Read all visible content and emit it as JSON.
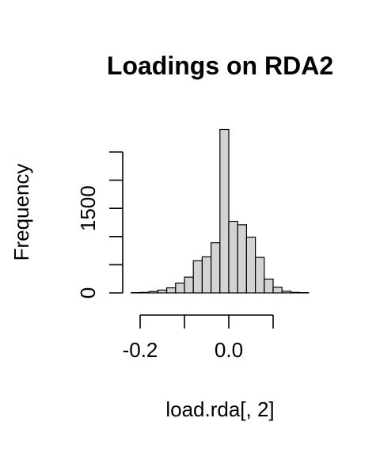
{
  "chart_data": {
    "type": "bar",
    "title": "Loadings on RDA2",
    "xlabel": "load.rda[, 2]",
    "ylabel": "Frequency",
    "x_ticks": [
      "-0.2",
      "0.0"
    ],
    "x_tick_values": [
      -0.2,
      -0.1,
      0.0,
      0.1
    ],
    "y_ticks": [
      "0",
      "1500"
    ],
    "y_tick_values": [
      0,
      500,
      1000,
      1500,
      2000,
      2500
    ],
    "bin_width": 0.02,
    "bins": [
      {
        "x0": -0.22,
        "x1": -0.2,
        "count": 5
      },
      {
        "x0": -0.2,
        "x1": -0.18,
        "count": 10
      },
      {
        "x0": -0.18,
        "x1": -0.16,
        "count": 25
      },
      {
        "x0": -0.16,
        "x1": -0.14,
        "count": 50
      },
      {
        "x0": -0.14,
        "x1": -0.12,
        "count": 90
      },
      {
        "x0": -0.12,
        "x1": -0.1,
        "count": 175
      },
      {
        "x0": -0.1,
        "x1": -0.08,
        "count": 280
      },
      {
        "x0": -0.08,
        "x1": -0.06,
        "count": 570
      },
      {
        "x0": -0.06,
        "x1": -0.04,
        "count": 640
      },
      {
        "x0": -0.04,
        "x1": -0.02,
        "count": 890
      },
      {
        "x0": -0.02,
        "x1": 0.0,
        "count": 2900
      },
      {
        "x0": 0.0,
        "x1": 0.02,
        "count": 1270
      },
      {
        "x0": 0.02,
        "x1": 0.04,
        "count": 1210
      },
      {
        "x0": 0.04,
        "x1": 0.06,
        "count": 990
      },
      {
        "x0": 0.06,
        "x1": 0.08,
        "count": 630
      },
      {
        "x0": 0.08,
        "x1": 0.1,
        "count": 245
      },
      {
        "x0": 0.1,
        "x1": 0.12,
        "count": 100
      },
      {
        "x0": 0.12,
        "x1": 0.14,
        "count": 30
      },
      {
        "x0": 0.14,
        "x1": 0.16,
        "count": 10
      },
      {
        "x0": 0.16,
        "x1": 0.18,
        "count": 5
      }
    ],
    "xlim": [
      -0.22,
      0.18
    ],
    "ylim": [
      0,
      2900
    ],
    "bar_color": "#d3d3d3",
    "edge_color": "#000000",
    "grid": false
  }
}
